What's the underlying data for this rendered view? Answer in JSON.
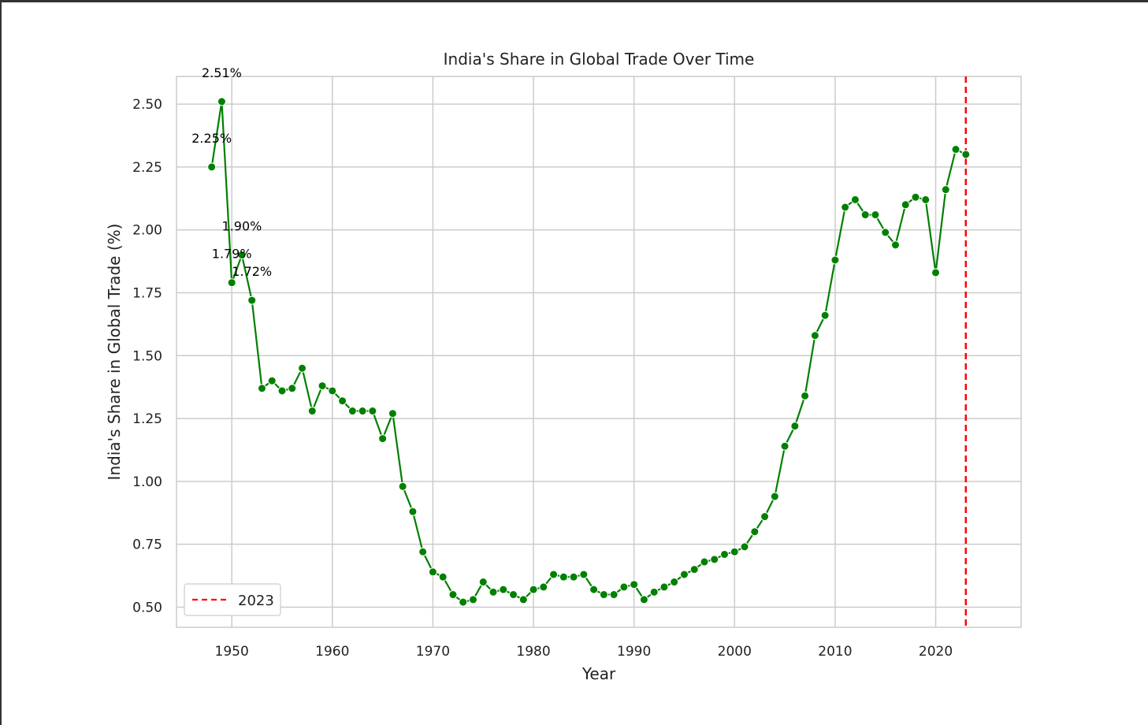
{
  "chart_data": {
    "type": "line",
    "title": "India's Share in Global Trade Over Time",
    "xlabel": "Year",
    "ylabel": "India's Share in Global Trade (%)",
    "xlim": [
      1944.5,
      2028.5
    ],
    "ylim": [
      0.42,
      2.61
    ],
    "xticks": [
      1950,
      1960,
      1970,
      1980,
      1990,
      2000,
      2010,
      2020
    ],
    "xtick_labels": [
      "1950",
      "1960",
      "1970",
      "1980",
      "1990",
      "2000",
      "2010",
      "2020"
    ],
    "yticks": [
      0.5,
      0.75,
      1.0,
      1.25,
      1.5,
      1.75,
      2.0,
      2.25,
      2.5
    ],
    "ytick_labels": [
      "0.50",
      "0.75",
      "1.00",
      "1.25",
      "1.50",
      "1.75",
      "2.00",
      "2.25",
      "2.50"
    ],
    "grid": true,
    "series": [
      {
        "color": "#008000",
        "marker": "circle",
        "x": [
          1948,
          1949,
          1950,
          1951,
          1952,
          1953,
          1954,
          1955,
          1956,
          1957,
          1958,
          1959,
          1960,
          1961,
          1962,
          1963,
          1964,
          1965,
          1966,
          1967,
          1968,
          1969,
          1970,
          1971,
          1972,
          1973,
          1974,
          1975,
          1976,
          1977,
          1978,
          1979,
          1980,
          1981,
          1982,
          1983,
          1984,
          1985,
          1986,
          1987,
          1988,
          1989,
          1990,
          1991,
          1992,
          1993,
          1994,
          1995,
          1996,
          1997,
          1998,
          1999,
          2000,
          2001,
          2002,
          2003,
          2004,
          2005,
          2006,
          2007,
          2008,
          2009,
          2010,
          2011,
          2012,
          2013,
          2014,
          2015,
          2016,
          2017,
          2018,
          2019,
          2020,
          2021,
          2022,
          2023
        ],
        "y": [
          2.25,
          2.51,
          1.79,
          1.9,
          1.72,
          1.37,
          1.4,
          1.36,
          1.37,
          1.45,
          1.28,
          1.38,
          1.36,
          1.32,
          1.28,
          1.28,
          1.28,
          1.17,
          1.27,
          0.98,
          0.88,
          0.72,
          0.64,
          0.62,
          0.55,
          0.52,
          0.53,
          0.6,
          0.56,
          0.57,
          0.55,
          0.53,
          0.57,
          0.58,
          0.63,
          0.62,
          0.62,
          0.63,
          0.57,
          0.55,
          0.55,
          0.58,
          0.59,
          0.53,
          0.56,
          0.58,
          0.6,
          0.63,
          0.65,
          0.68,
          0.69,
          0.71,
          0.72,
          0.74,
          0.8,
          0.86,
          0.94,
          1.14,
          1.22,
          1.34,
          1.58,
          1.66,
          1.88,
          2.09,
          2.12,
          2.06,
          2.06,
          1.99,
          1.94,
          2.1,
          2.13,
          2.12,
          1.83,
          2.16,
          2.32,
          2.3
        ]
      }
    ],
    "annotations": [
      {
        "x": 1948,
        "y": 2.25,
        "text": "2.25%"
      },
      {
        "x": 1949,
        "y": 2.51,
        "text": "2.51%"
      },
      {
        "x": 1950,
        "y": 1.79,
        "text": "1.79%"
      },
      {
        "x": 1951,
        "y": 1.9,
        "text": "1.90%"
      },
      {
        "x": 1952,
        "y": 1.72,
        "text": "1.72%"
      }
    ],
    "vline": {
      "x": 2023,
      "color": "#ff0000",
      "style": "dashed",
      "label": "2023"
    },
    "legend": {
      "placement": "lower-left",
      "entries": [
        "2023"
      ]
    }
  }
}
